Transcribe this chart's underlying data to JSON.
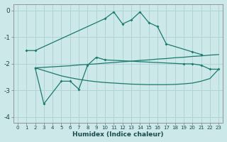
{
  "background_color": "#cce8e8",
  "grid_color": "#b0d4d4",
  "line_color": "#1a7a6e",
  "xlabel": "Humidex (Indice chaleur)",
  "xlim": [
    -0.5,
    23.5
  ],
  "ylim": [
    -4.2,
    0.25
  ],
  "xticks": [
    0,
    1,
    2,
    3,
    4,
    5,
    6,
    7,
    8,
    9,
    10,
    11,
    12,
    13,
    14,
    15,
    16,
    17,
    18,
    19,
    20,
    21,
    22,
    23
  ],
  "yticks": [
    0,
    -1,
    -2,
    -3,
    -4
  ],
  "s1_x": [
    1,
    2,
    10,
    11,
    12,
    13,
    14,
    15,
    16,
    17,
    20,
    21
  ],
  "s1_y": [
    -1.5,
    -1.5,
    -0.3,
    -0.05,
    -0.5,
    -0.35,
    -0.05,
    -0.45,
    -0.6,
    -1.25,
    -1.55,
    -1.65
  ],
  "s2_x": [
    2,
    3,
    5,
    6,
    7,
    8,
    9,
    10,
    19,
    20,
    21,
    22,
    23
  ],
  "s2_y": [
    -2.15,
    -3.5,
    -2.65,
    -2.65,
    -2.95,
    -2.05,
    -1.75,
    -1.85,
    -2.0,
    -2.0,
    -2.05,
    -2.2,
    -2.2
  ],
  "s3_x": [
    2,
    3,
    4,
    5,
    6,
    7,
    8,
    9,
    10,
    11,
    12,
    13,
    14,
    15,
    16,
    17,
    18,
    19,
    20,
    21,
    22,
    23
  ],
  "s3_y": [
    -2.15,
    -2.13,
    -2.11,
    -2.09,
    -2.07,
    -2.04,
    -2.02,
    -2.0,
    -1.97,
    -1.95,
    -1.92,
    -1.9,
    -1.87,
    -1.85,
    -1.82,
    -1.8,
    -1.77,
    -1.75,
    -1.72,
    -1.7,
    -1.67,
    -1.65
  ],
  "s4_x": [
    2,
    3,
    4,
    5,
    6,
    7,
    8,
    9,
    10,
    11,
    12,
    13,
    14,
    15,
    16,
    17,
    18,
    19,
    20,
    21,
    22,
    23
  ],
  "s4_y": [
    -2.15,
    -2.25,
    -2.35,
    -2.45,
    -2.52,
    -2.58,
    -2.63,
    -2.67,
    -2.7,
    -2.72,
    -2.74,
    -2.76,
    -2.77,
    -2.78,
    -2.78,
    -2.78,
    -2.77,
    -2.75,
    -2.72,
    -2.65,
    -2.55,
    -2.2
  ]
}
